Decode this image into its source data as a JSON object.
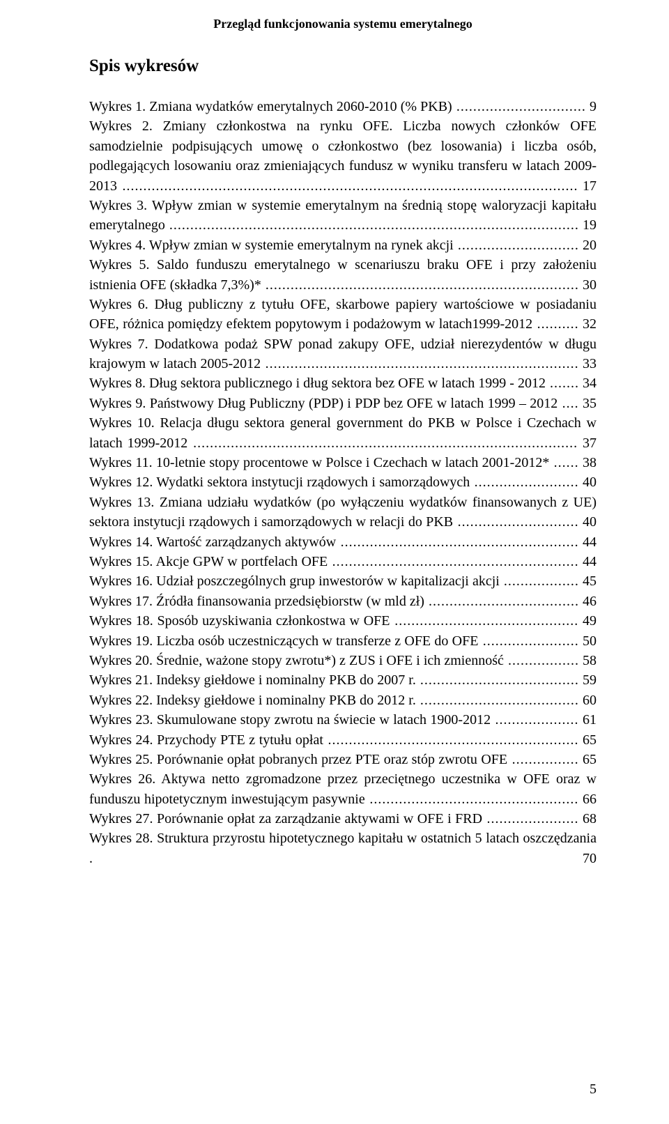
{
  "running_head": "Przegląd funkcjonowania systemu emerytalnego",
  "section_title": "Spis wykresów",
  "page_number": "5",
  "entries": [
    {
      "label": "Wykres 1. Zmiana wydatków emerytalnych 2060-2010 (% PKB)",
      "page": "9"
    },
    {
      "label": "Wykres 2. Zmiany członkostwa na rynku OFE. Liczba nowych członków OFE samodzielnie podpisujących umowę o członkostwo (bez losowania) i liczba osób, podlegających losowaniu oraz zmieniających fundusz w wyniku transferu w latach 2009-2013",
      "page": "17"
    },
    {
      "label": "Wykres 3. Wpływ zmian w systemie emerytalnym na średnią stopę waloryzacji kapitału emerytalnego",
      "page": "19"
    },
    {
      "label": "Wykres 4. Wpływ zmian w systemie emerytalnym na rynek akcji",
      "page": "20"
    },
    {
      "label": "Wykres 5. Saldo funduszu emerytalnego w scenariuszu braku OFE i przy założeniu istnienia OFE (składka 7,3%)*",
      "page": "30"
    },
    {
      "label": "Wykres 6. Dług publiczny z tytułu OFE, skarbowe papiery wartościowe w posiadaniu OFE, różnica pomiędzy efektem popytowym i podażowym w latach1999-2012",
      "page": "32"
    },
    {
      "label": "Wykres 7. Dodatkowa podaż SPW ponad zakupy OFE, udział nierezydentów w długu krajowym w latach 2005-2012",
      "page": "33"
    },
    {
      "label": "Wykres 8. Dług sektora publicznego i dług sektora bez OFE w latach 1999 - 2012",
      "page": "34"
    },
    {
      "label": "Wykres 9. Państwowy Dług Publiczny (PDP) i PDP bez OFE w latach 1999 – 2012",
      "page": "35"
    },
    {
      "label": "Wykres 10. Relacja długu sektora general government do PKB w Polsce i Czechach  w latach 1999-2012",
      "page": "37"
    },
    {
      "label": "Wykres 11. 10-letnie stopy procentowe w Polsce i Czechach w latach 2001-2012*",
      "page": "38"
    },
    {
      "label": "Wykres 12. Wydatki sektora instytucji rządowych i samorządowych",
      "page": "40"
    },
    {
      "label": "Wykres 13. Zmiana udziału wydatków (po wyłączeniu wydatków finansowanych z UE) sektora instytucji rządowych i samorządowych w relacji do PKB",
      "page": "40"
    },
    {
      "label": "Wykres 14. Wartość zarządzanych aktywów",
      "page": "44"
    },
    {
      "label": "Wykres 15. Akcje GPW w portfelach OFE",
      "page": "44"
    },
    {
      "label": "Wykres 16. Udział poszczególnych grup inwestorów w kapitalizacji akcji",
      "page": "45"
    },
    {
      "label": "Wykres 17. Źródła finansowania przedsiębiorstw (w mld zł)",
      "page": "46"
    },
    {
      "label": "Wykres 18. Sposób uzyskiwania członkostwa w OFE",
      "page": "49"
    },
    {
      "label": "Wykres 19. Liczba osób uczestniczących w transferze z OFE do OFE",
      "page": "50"
    },
    {
      "label": "Wykres 20. Średnie, ważone stopy zwrotu*) z ZUS i OFE i ich zmienność",
      "page": "58"
    },
    {
      "label": "Wykres 21. Indeksy giełdowe i nominalny PKB do 2007 r.",
      "page": "59"
    },
    {
      "label": "Wykres 22. Indeksy giełdowe i nominalny PKB do 2012 r.",
      "page": "60"
    },
    {
      "label": "Wykres 23. Skumulowane stopy zwrotu na świecie w latach 1900-2012",
      "page": "61"
    },
    {
      "label": "Wykres 24. Przychody PTE z tytułu opłat",
      "page": "65"
    },
    {
      "label": "Wykres 25. Porównanie opłat pobranych przez PTE oraz stóp zwrotu OFE",
      "page": "65"
    },
    {
      "label": "Wykres 26. Aktywa netto zgromadzone przez przeciętnego uczestnika w OFE oraz  w funduszu hipotetycznym inwestującym pasywnie",
      "page": "66"
    },
    {
      "label": "Wykres 27. Porównanie opłat za zarządzanie aktywami w OFE i FRD",
      "page": "68"
    },
    {
      "label": "Wykres 28. Struktura przyrostu hipotetycznego kapitału w ostatnich 5 latach oszczędzania",
      "page": "70",
      "dots": "."
    }
  ]
}
